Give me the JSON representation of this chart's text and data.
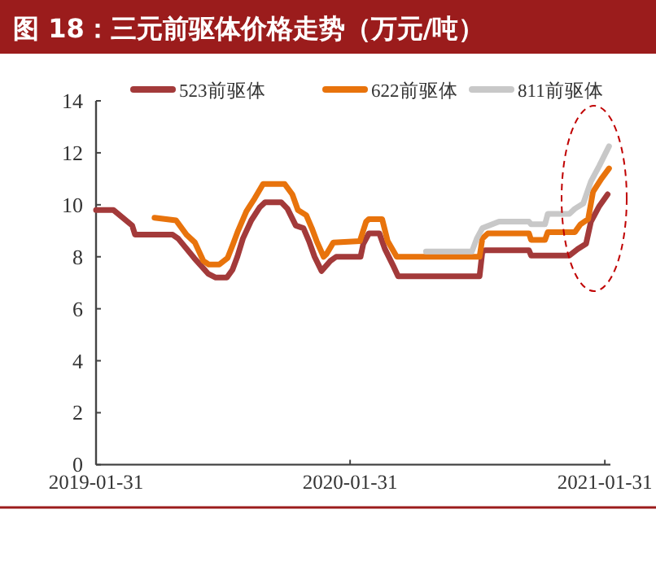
{
  "chart_data": {
    "type": "line",
    "title": "图 18：三元前驱体价格走势（万元/吨）",
    "legend": "top",
    "marker": "none",
    "line_style": "solid",
    "grid": false,
    "xlim": [
      "2019-01-31",
      "2021-02-08"
    ],
    "xticks": [
      "2019-01-31",
      "2020-01-31",
      "2021-01-31"
    ],
    "ylim": [
      0,
      14
    ],
    "yticks": [
      0,
      2,
      4,
      6,
      8,
      10,
      12,
      14
    ],
    "series": [
      {
        "name": "523前驱体",
        "color": "#a33a3a",
        "x": [
          "2019-01-31",
          "2019-02-25",
          "2019-03-24",
          "2019-03-28",
          "2019-05-21",
          "2019-05-29",
          "2019-06-21",
          "2019-07-11",
          "2019-07-22",
          "2019-08-07",
          "2019-08-15",
          "2019-08-22",
          "2019-08-30",
          "2019-09-11",
          "2019-09-23",
          "2019-10-01",
          "2019-10-24",
          "2019-11-02",
          "2019-11-14",
          "2019-11-25",
          "2019-12-03",
          "2019-12-11",
          "2019-12-21",
          "2020-01-03",
          "2020-01-11",
          "2020-02-15",
          "2020-02-19",
          "2020-02-27",
          "2020-03-13",
          "2020-03-21",
          "2020-04-02",
          "2020-04-09",
          "2020-08-04",
          "2020-08-08",
          "2020-08-12",
          "2020-10-14",
          "2020-10-17",
          "2020-12-11",
          "2020-12-23",
          "2021-01-04",
          "2021-01-11",
          "2021-01-23",
          "2021-02-04"
        ],
        "values": [
          9.8,
          9.8,
          9.2,
          8.85,
          8.85,
          8.7,
          7.95,
          7.35,
          7.2,
          7.2,
          7.5,
          8.0,
          8.7,
          9.4,
          9.9,
          10.1,
          10.1,
          9.85,
          9.2,
          9.1,
          8.6,
          8.0,
          7.45,
          7.85,
          8.0,
          8.0,
          8.5,
          8.9,
          8.9,
          8.3,
          7.65,
          7.25,
          7.25,
          8.2,
          8.25,
          8.25,
          8.05,
          8.05,
          8.3,
          8.5,
          9.35,
          9.95,
          10.4
        ]
      },
      {
        "name": "622前驱体",
        "color": "#e8730c",
        "x": [
          "2019-04-25",
          "2019-05-26",
          "2019-06-10",
          "2019-06-22",
          "2019-07-04",
          "2019-07-12",
          "2019-07-27",
          "2019-08-08",
          "2019-08-16",
          "2019-08-23",
          "2019-09-04",
          "2019-09-16",
          "2019-09-28",
          "2019-10-29",
          "2019-11-09",
          "2019-11-17",
          "2019-11-29",
          "2019-12-07",
          "2019-12-14",
          "2019-12-24",
          "2019-12-28",
          "2020-01-07",
          "2020-02-14",
          "2020-02-23",
          "2020-02-27",
          "2020-03-17",
          "2020-03-25",
          "2020-04-07",
          "2020-08-04",
          "2020-08-08",
          "2020-08-16",
          "2020-10-14",
          "2020-10-17",
          "2020-11-06",
          "2020-11-10",
          "2020-12-19",
          "2020-12-27",
          "2021-01-07",
          "2021-01-14",
          "2021-01-26",
          "2021-02-06"
        ],
        "values": [
          9.5,
          9.4,
          8.85,
          8.55,
          7.85,
          7.7,
          7.7,
          7.95,
          8.5,
          9.0,
          9.75,
          10.25,
          10.8,
          10.8,
          10.4,
          9.8,
          9.6,
          9.1,
          8.6,
          8.0,
          8.1,
          8.55,
          8.6,
          9.35,
          9.45,
          9.45,
          8.6,
          8.0,
          8.0,
          8.7,
          8.9,
          8.9,
          8.65,
          8.65,
          8.95,
          8.95,
          9.25,
          9.45,
          10.5,
          11.0,
          11.4
        ]
      },
      {
        "name": "811前驱体",
        "color": "#c8c8c8",
        "x": [
          "2020-05-19",
          "2020-07-24",
          "2020-07-31",
          "2020-08-08",
          "2020-09-01",
          "2020-10-14",
          "2020-10-17",
          "2020-11-06",
          "2020-11-10",
          "2020-12-11",
          "2020-12-19",
          "2020-12-31",
          "2021-01-11",
          "2021-01-23",
          "2021-02-06"
        ],
        "values": [
          8.2,
          8.2,
          8.7,
          9.1,
          9.35,
          9.35,
          9.25,
          9.25,
          9.65,
          9.65,
          9.85,
          10.05,
          10.9,
          11.5,
          12.25
        ]
      }
    ]
  }
}
